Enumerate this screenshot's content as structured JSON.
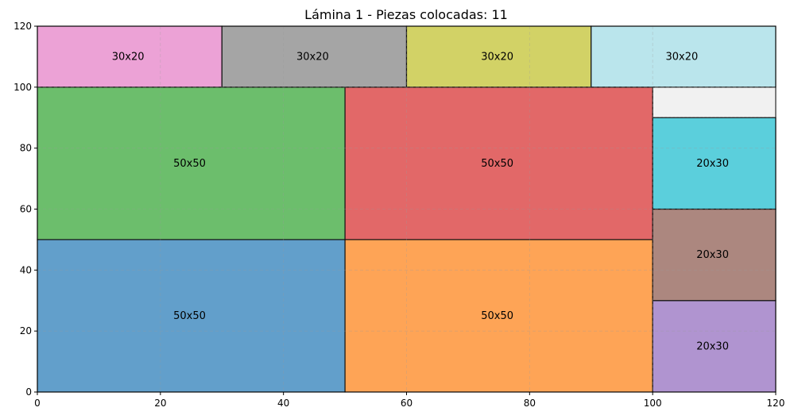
{
  "chart_data": {
    "type": "rectangle_packing",
    "title": "Lámina 1 - Piezas colocadas: 11",
    "xlabel": "",
    "ylabel": "",
    "xlim": [
      0,
      120
    ],
    "ylim": [
      0,
      120
    ],
    "xticks": [
      0,
      20,
      40,
      60,
      80,
      100,
      120
    ],
    "yticks": [
      0,
      20,
      40,
      60,
      80,
      100,
      120
    ],
    "grid": true,
    "pieces": [
      {
        "label": "50x50",
        "x": 0,
        "y": 0,
        "w": 50,
        "h": 50,
        "color": "#629fcb"
      },
      {
        "label": "50x50",
        "x": 50,
        "y": 0,
        "w": 50,
        "h": 50,
        "color": "#fea456"
      },
      {
        "label": "50x50",
        "x": 0,
        "y": 50,
        "w": 50,
        "h": 50,
        "color": "#6cbe6c"
      },
      {
        "label": "50x50",
        "x": 50,
        "y": 50,
        "w": 50,
        "h": 50,
        "color": "#e26868"
      },
      {
        "label": "30x20",
        "x": 0,
        "y": 100,
        "w": 30,
        "h": 20,
        "color": "#eca2d6"
      },
      {
        "label": "30x20",
        "x": 30,
        "y": 100,
        "w": 30,
        "h": 20,
        "color": "#a5a5a5"
      },
      {
        "label": "30x20",
        "x": 60,
        "y": 100,
        "w": 30,
        "h": 20,
        "color": "#d2d266"
      },
      {
        "label": "30x20",
        "x": 90,
        "y": 100,
        "w": 30,
        "h": 20,
        "color": "#bae5ec"
      },
      {
        "label": "20x30",
        "x": 100,
        "y": 0,
        "w": 20,
        "h": 30,
        "color": "#b094d0"
      },
      {
        "label": "20x30",
        "x": 100,
        "y": 30,
        "w": 20,
        "h": 30,
        "color": "#ac877f"
      },
      {
        "label": "20x30",
        "x": 100,
        "y": 60,
        "w": 20,
        "h": 30,
        "color": "#5bcfdc"
      }
    ],
    "empty_regions": [
      {
        "x": 100,
        "y": 90,
        "w": 20,
        "h": 10,
        "color": "#f1f1f1"
      }
    ]
  }
}
